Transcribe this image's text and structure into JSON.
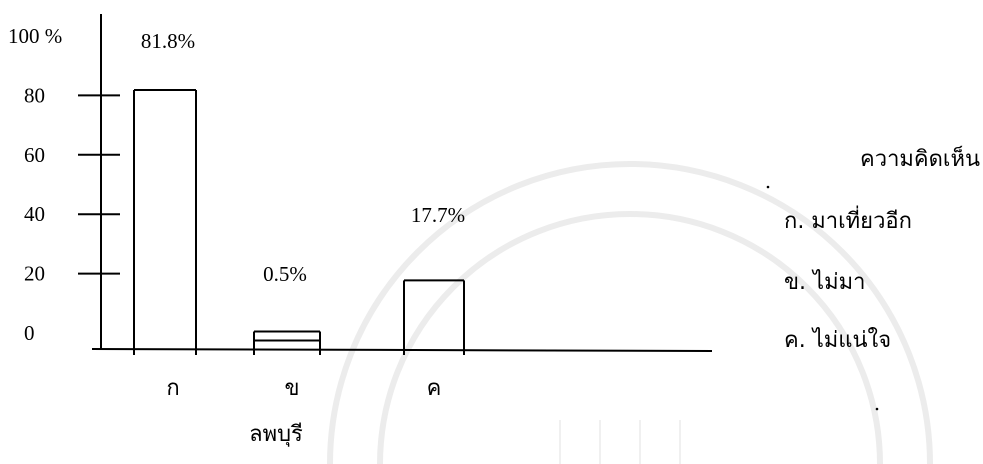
{
  "chart_data": {
    "type": "bar",
    "categories": [
      "ก",
      "ข",
      "ค"
    ],
    "values": [
      81.8,
      0.5,
      17.7
    ],
    "data_labels": [
      "81.8%",
      "0.5%",
      "17.7%"
    ],
    "y_ticks": [
      "100 %",
      "80",
      "60",
      "40",
      "20",
      "0"
    ],
    "y_tick_values": [
      100,
      80,
      60,
      40,
      20,
      0
    ],
    "ylim": [
      0,
      100
    ],
    "xlabel": "ลพบุรี",
    "legend": {
      "title": "ความคิดเห็น",
      "items": [
        "ก. มาเที่ยวอีก",
        "ข. ไม่มา",
        "ค. ไม่แน่ใจ"
      ],
      "placement": "right"
    },
    "grid": false,
    "bar_fill": "#ffffff",
    "stroke_color": "#000000"
  }
}
